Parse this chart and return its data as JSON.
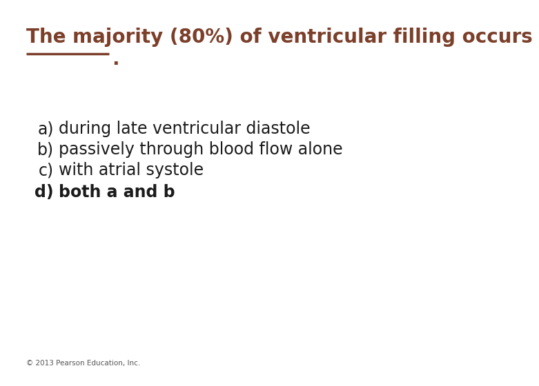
{
  "title_line1": "The majority (80%) of ventricular filling occurs",
  "title_color": "#7B3F2A",
  "line_color": "#7B3F2A",
  "dot_color": "#7B3F2A",
  "bg_color": "#FFFFFF",
  "options": [
    {
      "label": "a)",
      "text": "during late ventricular diastole",
      "bold": false
    },
    {
      "label": "b)",
      "text": "passively through blood flow alone",
      "bold": false
    },
    {
      "label": "c)",
      "text": "with atrial systole",
      "bold": false
    },
    {
      "label": "d)",
      "text": "both a and b",
      "bold": true
    }
  ],
  "label_color": "#1a1a1a",
  "text_color": "#1a1a1a",
  "footer": "© 2013 Pearson Education, Inc.",
  "footer_color": "#555555",
  "title_fontsize": 20,
  "option_fontsize": 17,
  "footer_fontsize": 7.5
}
